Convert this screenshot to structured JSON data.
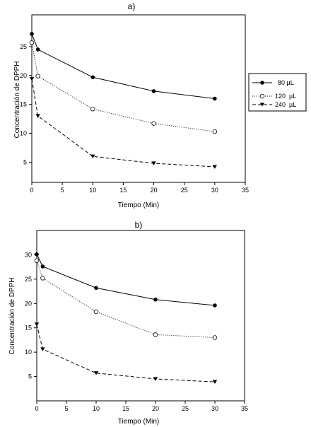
{
  "chart_data": [
    {
      "type": "line",
      "panel_label": "a)",
      "xlabel": "Tiempo (Min)",
      "ylabel": "Concentración de DPPH",
      "xlim": [
        0,
        35
      ],
      "ylim": [
        1.5,
        30.5
      ],
      "xticks": [
        0,
        5,
        10,
        15,
        20,
        25,
        30,
        35
      ],
      "yticks": [
        5,
        10,
        15,
        20,
        25
      ],
      "grid": false,
      "legend_position": "right",
      "series": [
        {
          "name": "80 µL",
          "marker": "filled-circle",
          "line_style": "solid",
          "color": "#000000",
          "x": [
            0,
            1,
            10,
            20,
            30
          ],
          "y": [
            27.2,
            24.5,
            19.7,
            17.3,
            16.0
          ]
        },
        {
          "name": "120  µL",
          "marker": "open-circle",
          "line_style": "dotted",
          "color": "#000000",
          "x": [
            0,
            1,
            10,
            20,
            30
          ],
          "y": [
            25.7,
            19.9,
            14.2,
            11.7,
            10.3
          ]
        },
        {
          "name": "240  µL",
          "marker": "filled-triangle-down",
          "line_style": "dashed",
          "color": "#000000",
          "x": [
            0,
            1,
            10,
            20,
            30
          ],
          "y": [
            19.4,
            13.0,
            6.0,
            4.8,
            4.2
          ]
        }
      ]
    },
    {
      "type": "line",
      "panel_label": "b)",
      "xlabel": "Tiempo (Min)",
      "ylabel": "Concentración de DPPH",
      "xlim": [
        0,
        35
      ],
      "ylim": [
        0,
        35
      ],
      "xticks": [
        0,
        5,
        10,
        15,
        20,
        25,
        30,
        35
      ],
      "yticks": [
        5,
        10,
        15,
        20,
        25,
        30
      ],
      "grid": false,
      "legend_position": "none",
      "series": [
        {
          "name": "80 µL",
          "marker": "filled-circle",
          "line_style": "solid",
          "color": "#000000",
          "x": [
            0,
            1,
            10,
            20,
            30
          ],
          "y": [
            30.1,
            27.6,
            23.2,
            20.8,
            19.6
          ]
        },
        {
          "name": "120  µL",
          "marker": "open-circle",
          "line_style": "dotted",
          "color": "#000000",
          "x": [
            0,
            1,
            10,
            20,
            30
          ],
          "y": [
            28.8,
            25.2,
            18.3,
            13.6,
            13.0
          ]
        },
        {
          "name": "240  µL",
          "marker": "filled-triangle-down",
          "line_style": "dashed",
          "color": "#000000",
          "x": [
            0,
            1,
            10,
            20,
            30
          ],
          "y": [
            15.7,
            10.6,
            5.7,
            4.5,
            3.9
          ]
        }
      ]
    }
  ]
}
